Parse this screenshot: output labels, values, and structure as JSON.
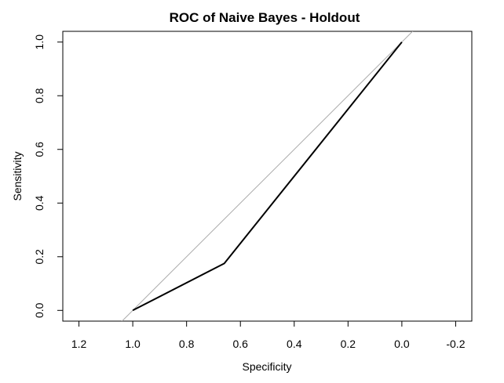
{
  "chart_data": {
    "type": "line",
    "title": "ROC of Naive Bayes - Holdout",
    "xlabel": "Specificity",
    "ylabel": "Sensitivity",
    "xlim": [
      1.26,
      -0.26
    ],
    "ylim": [
      -0.04,
      1.04
    ],
    "x_reversed": true,
    "x_ticks": [
      1.2,
      1.0,
      0.8,
      0.6,
      0.4,
      0.2,
      0.0,
      -0.2
    ],
    "x_tick_labels": [
      "1.2",
      "1.0",
      "0.8",
      "0.6",
      "0.4",
      "0.2",
      "0.0",
      "-0.2"
    ],
    "y_ticks": [
      0.0,
      0.2,
      0.4,
      0.6,
      0.8,
      1.0
    ],
    "y_tick_labels": [
      "0.0",
      "0.2",
      "0.4",
      "0.6",
      "0.8",
      "1.0"
    ],
    "grid": false,
    "legend": "none",
    "series": [
      {
        "x": [
          1.0,
          0.66,
          0.0
        ],
        "y": [
          0.0,
          0.175,
          1.0
        ],
        "color": "#000000"
      }
    ],
    "reference_line": {
      "x": [
        1.0,
        0.0
      ],
      "y": [
        0.0,
        1.0
      ],
      "color": "#aaaaaa"
    }
  }
}
